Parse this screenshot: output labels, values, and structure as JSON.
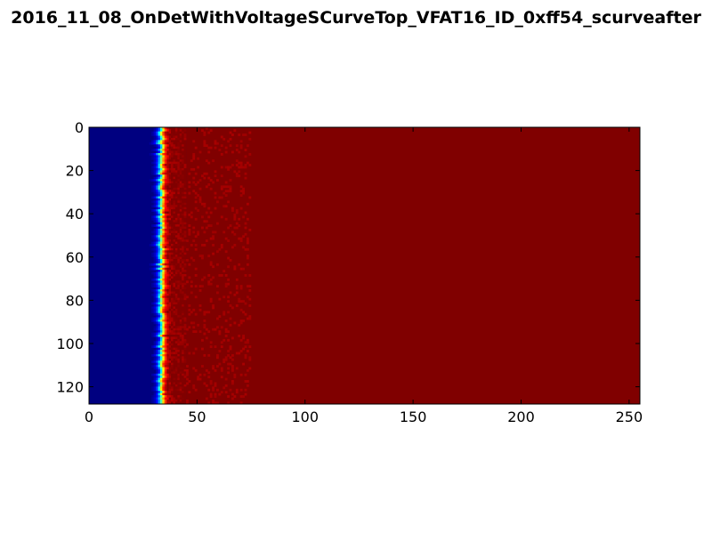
{
  "chart_data": {
    "type": "heatmap",
    "title": "2016_11_08_OnDetWithVoltageSCurveTop_VFAT16_ID_0xff54_scurveafter",
    "xlabel": "",
    "ylabel": "",
    "xlim": [
      0,
      255
    ],
    "ylim": [
      128,
      0
    ],
    "y_inverted": true,
    "grid": false,
    "colormap": "jet",
    "x_ticks": [
      "0",
      "50",
      "100",
      "150",
      "200",
      "250"
    ],
    "y_ticks": [
      "0",
      "20",
      "40",
      "60",
      "80",
      "100",
      "120"
    ],
    "x_tick_values": [
      0,
      50,
      100,
      150,
      200,
      250
    ],
    "y_tick_values": [
      0,
      20,
      40,
      60,
      80,
      100,
      120
    ],
    "rows": 128,
    "columns": 255,
    "low_value_color": "#00007f",
    "high_value_color": "#7f0000",
    "description_values": {
      "transition_center_x": 33,
      "transition_width_x": 3,
      "low_level": 0.0,
      "high_level": 1.0
    }
  }
}
